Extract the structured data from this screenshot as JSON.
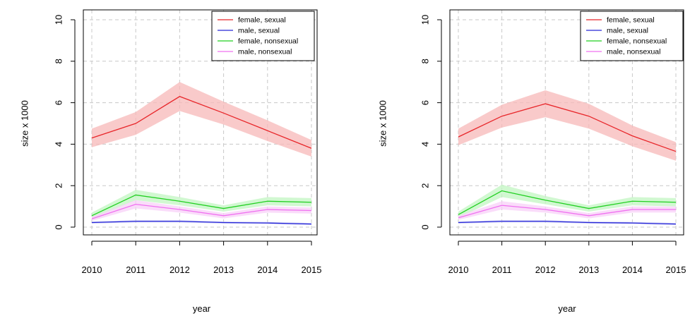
{
  "chart_data": [
    {
      "type": "line",
      "xlabel": "year",
      "ylabel": "size x 1000",
      "x": [
        2010,
        2011,
        2012,
        2013,
        2014,
        2015
      ],
      "xlim": [
        2010,
        2015
      ],
      "ylim": [
        0,
        10
      ],
      "yticks": [
        0,
        2,
        4,
        6,
        8,
        10
      ],
      "grid": true,
      "legend_position": "top-right",
      "series": [
        {
          "name": "female, sexual",
          "color": "#e8262a",
          "band_color": "#f7b8b8",
          "values": [
            4.3,
            5.0,
            6.3,
            5.5,
            4.65,
            3.8
          ],
          "lower": [
            3.85,
            4.45,
            5.6,
            4.95,
            4.15,
            3.4
          ],
          "upper": [
            4.75,
            5.55,
            7.0,
            6.05,
            5.15,
            4.2
          ]
        },
        {
          "name": "male, sexual",
          "color": "#2727d8",
          "band_color": "#c8c8f4",
          "values": [
            0.22,
            0.28,
            0.28,
            0.22,
            0.2,
            0.15
          ],
          "lower": [
            0.17,
            0.23,
            0.23,
            0.17,
            0.15,
            0.1
          ],
          "upper": [
            0.27,
            0.33,
            0.33,
            0.27,
            0.25,
            0.2
          ]
        },
        {
          "name": "female, nonsexual",
          "color": "#22d022",
          "band_color": "#c2f5c2",
          "values": [
            0.55,
            1.55,
            1.25,
            0.9,
            1.25,
            1.2
          ],
          "lower": [
            0.4,
            1.3,
            1.05,
            0.75,
            1.05,
            1.0
          ],
          "upper": [
            0.7,
            1.8,
            1.45,
            1.05,
            1.45,
            1.4
          ]
        },
        {
          "name": "male, nonsexual",
          "color": "#f070f0",
          "band_color": "#f8d0f8",
          "values": [
            0.4,
            1.1,
            0.85,
            0.55,
            0.85,
            0.8
          ],
          "lower": [
            0.3,
            0.9,
            0.7,
            0.42,
            0.7,
            0.65
          ],
          "upper": [
            0.5,
            1.3,
            1.0,
            0.68,
            1.0,
            0.95
          ]
        }
      ]
    },
    {
      "type": "line",
      "xlabel": "year",
      "ylabel": "size x 1000",
      "x": [
        2010,
        2011,
        2012,
        2013,
        2014,
        2015
      ],
      "xlim": [
        2010,
        2015
      ],
      "ylim": [
        0,
        10
      ],
      "yticks": [
        0,
        2,
        4,
        6,
        8,
        10
      ],
      "grid": true,
      "legend_position": "top-right",
      "series": [
        {
          "name": "female, sexual",
          "color": "#e8262a",
          "band_color": "#f7b8b8",
          "values": [
            4.35,
            5.35,
            5.95,
            5.35,
            4.4,
            3.65
          ],
          "lower": [
            3.95,
            4.8,
            5.3,
            4.75,
            3.9,
            3.2
          ],
          "upper": [
            4.75,
            5.9,
            6.6,
            5.95,
            4.9,
            4.1
          ]
        },
        {
          "name": "male, sexual",
          "color": "#2727d8",
          "band_color": "#c8c8f4",
          "values": [
            0.22,
            0.28,
            0.28,
            0.22,
            0.2,
            0.15
          ],
          "lower": [
            0.17,
            0.23,
            0.23,
            0.17,
            0.15,
            0.1
          ],
          "upper": [
            0.27,
            0.33,
            0.33,
            0.27,
            0.25,
            0.2
          ]
        },
        {
          "name": "female, nonsexual",
          "color": "#22d022",
          "band_color": "#c2f5c2",
          "values": [
            0.6,
            1.75,
            1.3,
            0.9,
            1.25,
            1.2
          ],
          "lower": [
            0.45,
            1.45,
            1.1,
            0.75,
            1.05,
            1.0
          ],
          "upper": [
            0.75,
            2.05,
            1.5,
            1.05,
            1.45,
            1.4
          ]
        },
        {
          "name": "male, nonsexual",
          "color": "#f070f0",
          "band_color": "#f8d0f8",
          "values": [
            0.45,
            1.05,
            0.85,
            0.55,
            0.85,
            0.85
          ],
          "lower": [
            0.35,
            0.85,
            0.7,
            0.42,
            0.7,
            0.7
          ],
          "upper": [
            0.55,
            1.25,
            1.0,
            0.68,
            1.0,
            1.0
          ]
        }
      ]
    }
  ]
}
